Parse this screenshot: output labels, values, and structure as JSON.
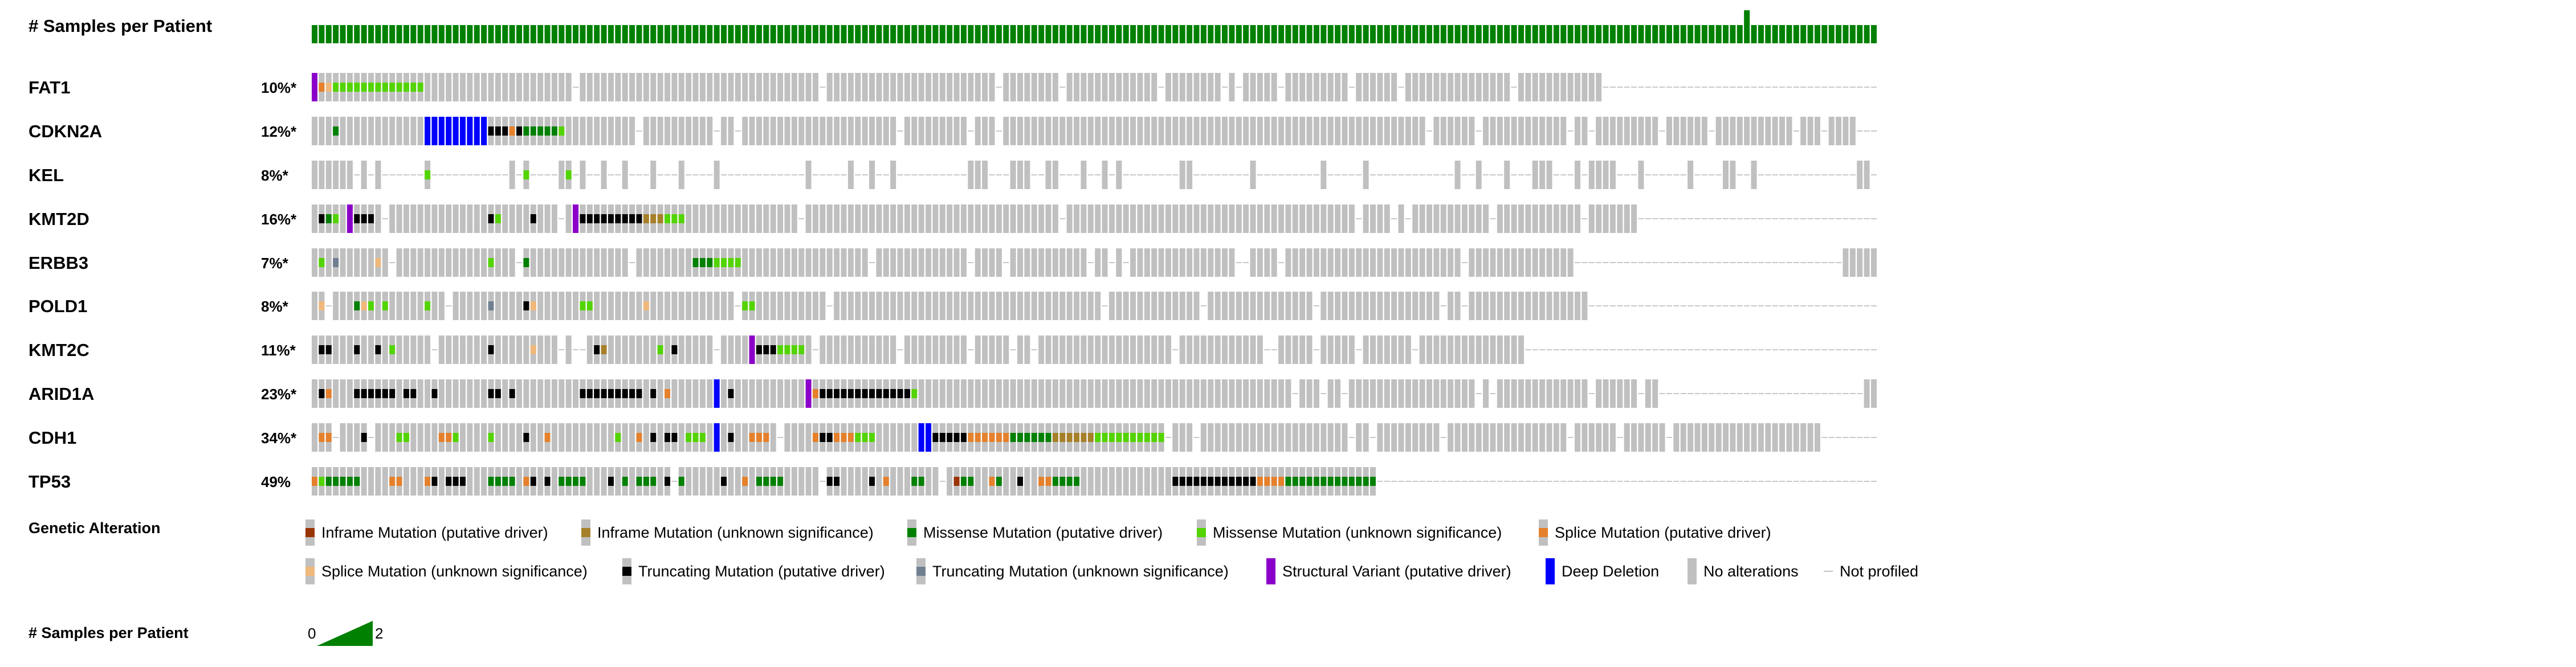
{
  "header": {
    "samples_per_patient_label": "# Samples per Patient"
  },
  "tracks": [
    {
      "name": "FAT1",
      "pct": "10%*"
    },
    {
      "name": "CDKN2A",
      "pct": "12%*"
    },
    {
      "name": "KEL",
      "pct": "8%*"
    },
    {
      "name": "KMT2D",
      "pct": "16%*"
    },
    {
      "name": "ERBB3",
      "pct": "7%*"
    },
    {
      "name": "POLD1",
      "pct": "8%*"
    },
    {
      "name": "KMT2C",
      "pct": "11%*"
    },
    {
      "name": "ARID1A",
      "pct": "23%*"
    },
    {
      "name": "CDH1",
      "pct": "34%*"
    },
    {
      "name": "TP53",
      "pct": "49%"
    }
  ],
  "colors": {
    "no_alteration": "#c0c0c0",
    "samples_bar": "#008000",
    "inframe_driver": "#993404",
    "inframe_unknown": "#a68028",
    "missense_driver": "#008000",
    "missense_unknown": "#53d400",
    "splice_driver": "#e5802b",
    "splice_unknown": "#f0b87b",
    "truncating_driver": "#000000",
    "truncating_unknown": "#708090",
    "structural_driver": "#8b00c9",
    "deep_deletion": "#0000ff"
  },
  "legend": {
    "title": "Genetic Alteration",
    "items_row1": [
      {
        "label": "Inframe Mutation (putative driver)",
        "type": "inframe_driver"
      },
      {
        "label": "Inframe Mutation (unknown significance)",
        "type": "inframe_unknown"
      },
      {
        "label": "Missense Mutation (putative driver)",
        "type": "missense_driver"
      },
      {
        "label": "Missense Mutation (unknown significance)",
        "type": "missense_unknown"
      },
      {
        "label": "Splice Mutation (putative driver)",
        "type": "splice_driver"
      }
    ],
    "items_row2": [
      {
        "label": "Splice Mutation (unknown significance)",
        "type": "splice_unknown"
      },
      {
        "label": "Truncating Mutation (putative driver)",
        "type": "truncating_driver"
      },
      {
        "label": "Truncating Mutation (unknown significance)",
        "type": "truncating_unknown"
      },
      {
        "label": "Structural Variant (putative driver)",
        "type": "structural_driver"
      },
      {
        "label": "Deep Deletion",
        "type": "deep_deletion"
      },
      {
        "label": "No alterations",
        "type": "no_alteration"
      },
      {
        "label": "Not profiled",
        "type": "not_profiled"
      }
    ]
  },
  "samples_legend": {
    "title": "# Samples per Patient",
    "min": "0",
    "max": "2"
  }
}
